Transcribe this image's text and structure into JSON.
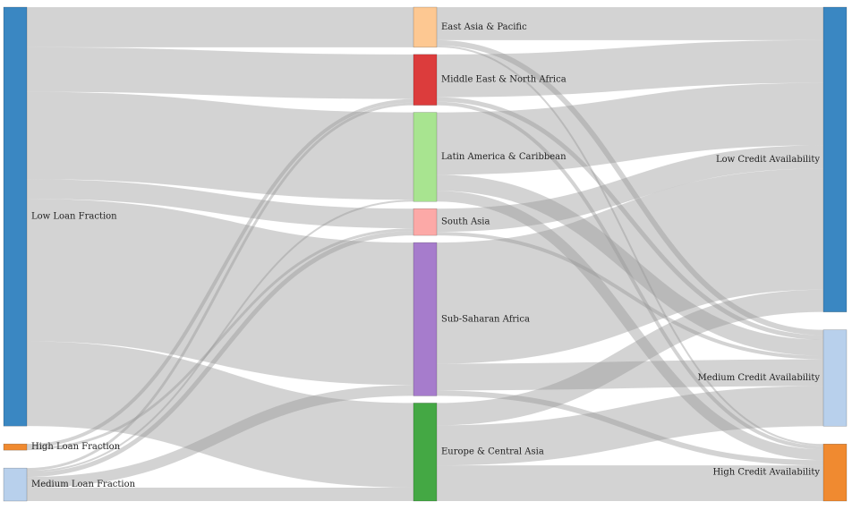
{
  "diagram": {
    "type": "sankey",
    "nodes": [
      {
        "id": "low_loan",
        "label": "Low Loan Fraction",
        "color": "#3a87c2"
      },
      {
        "id": "high_loan",
        "label": "High Loan Fraction",
        "color": "#f08a30"
      },
      {
        "id": "med_loan",
        "label": "Medium Loan Fraction",
        "color": "#b8d0ec"
      },
      {
        "id": "eap",
        "label": "East Asia & Pacific",
        "color": "#fdc892"
      },
      {
        "id": "mena",
        "label": "Middle East & North Africa",
        "color": "#dc3c3c"
      },
      {
        "id": "lac",
        "label": "Latin America & Caribbean",
        "color": "#a8e490"
      },
      {
        "id": "sa",
        "label": "South Asia",
        "color": "#fca9a7"
      },
      {
        "id": "ssa",
        "label": "Sub-Saharan Africa",
        "color": "#a67ccc"
      },
      {
        "id": "eca",
        "label": "Europe & Central Asia",
        "color": "#44a844"
      },
      {
        "id": "low_credit",
        "label": "Low Credit Availability",
        "color": "#3a87c2"
      },
      {
        "id": "med_credit",
        "label": "Medium Credit Availability",
        "color": "#b8d0ec"
      },
      {
        "id": "high_credit",
        "label": "High Credit Availability",
        "color": "#f08a30"
      }
    ],
    "links": [
      {
        "source": "low_loan",
        "target": "eap",
        "value": 45
      },
      {
        "source": "low_loan",
        "target": "mena",
        "value": 50
      },
      {
        "source": "low_loan",
        "target": "lac",
        "value": 98
      },
      {
        "source": "low_loan",
        "target": "sa",
        "value": 22
      },
      {
        "source": "low_loan",
        "target": "ssa",
        "value": 160
      },
      {
        "source": "low_loan",
        "target": "eca",
        "value": 95
      },
      {
        "source": "high_loan",
        "target": "mena",
        "value": 4
      },
      {
        "source": "high_loan",
        "target": "sa",
        "value": 3
      },
      {
        "source": "med_loan",
        "target": "mena",
        "value": 3
      },
      {
        "source": "med_loan",
        "target": "lac",
        "value": 2
      },
      {
        "source": "med_loan",
        "target": "sa",
        "value": 5
      },
      {
        "source": "med_loan",
        "target": "ssa",
        "value": 12
      },
      {
        "source": "med_loan",
        "target": "eca",
        "value": 15
      },
      {
        "source": "eap",
        "target": "low_credit",
        "value": 37
      },
      {
        "source": "eap",
        "target": "med_credit",
        "value": 6
      },
      {
        "source": "eap",
        "target": "high_credit",
        "value": 2
      },
      {
        "source": "mena",
        "target": "low_credit",
        "value": 48
      },
      {
        "source": "mena",
        "target": "med_credit",
        "value": 5
      },
      {
        "source": "mena",
        "target": "high_credit",
        "value": 4
      },
      {
        "source": "lac",
        "target": "low_credit",
        "value": 70
      },
      {
        "source": "lac",
        "target": "med_credit",
        "value": 18
      },
      {
        "source": "lac",
        "target": "high_credit",
        "value": 12
      },
      {
        "source": "sa",
        "target": "low_credit",
        "value": 26
      },
      {
        "source": "sa",
        "target": "med_credit",
        "value": 4
      },
      {
        "source": "ssa",
        "target": "low_credit",
        "value": 136
      },
      {
        "source": "ssa",
        "target": "med_credit",
        "value": 30
      },
      {
        "source": "ssa",
        "target": "high_credit",
        "value": 6
      },
      {
        "source": "eca",
        "target": "low_credit",
        "value": 25
      },
      {
        "source": "eca",
        "target": "med_credit",
        "value": 45
      },
      {
        "source": "eca",
        "target": "high_credit",
        "value": 40
      }
    ]
  }
}
